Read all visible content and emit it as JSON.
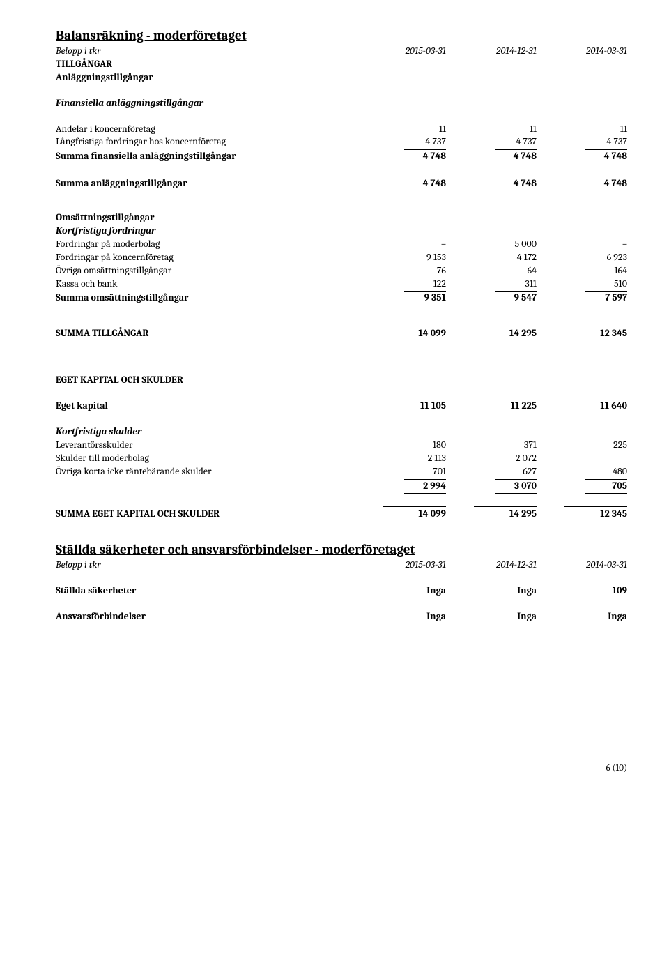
{
  "title1": "Balansräkning - moderföretaget",
  "header": {
    "label": "Belopp i tkr",
    "c1": "2015-03-31",
    "c2": "2014-12-31",
    "c3": "2014-03-31"
  },
  "s_tillgangar": "TILLGÅNGAR",
  "s_anlaggning": "Anläggningstillgångar",
  "s_fin_anl": "Finansiella anläggningstillgångar",
  "r_andelar": {
    "label": "Andelar i koncernföretag",
    "c1": "11",
    "c2": "11",
    "c3": "11"
  },
  "r_langfr": {
    "label": "Långfristiga fordringar hos koncernföretag",
    "c1": "4 737",
    "c2": "4 737",
    "c3": "4 737"
  },
  "r_sum_fin": {
    "label": "Summa finansiella anläggningstillgångar",
    "c1": "4 748",
    "c2": "4 748",
    "c3": "4 748"
  },
  "r_sum_anl": {
    "label": "Summa anläggningstillgångar",
    "c1": "4 748",
    "c2": "4 748",
    "c3": "4 748"
  },
  "s_oms": "Omsättningstillgångar",
  "s_kort_fordr": "Kortfristiga fordringar",
  "r_fordr_moder": {
    "label": "Fordringar på moderbolag",
    "c1": "–",
    "c2": "5 000",
    "c3": "–"
  },
  "r_fordr_konc": {
    "label": "Fordringar på koncernföretag",
    "c1": "9 153",
    "c2": "4 172",
    "c3": "6 923"
  },
  "r_ovriga_oms": {
    "label": "Övriga omsättningstillgångar",
    "c1": "76",
    "c2": "64",
    "c3": "164"
  },
  "r_kassa": {
    "label": "Kassa och bank",
    "c1": "122",
    "c2": "311",
    "c3": "510"
  },
  "r_sum_oms": {
    "label": "Summa omsättningstillgångar",
    "c1": "9 351",
    "c2": "9 547",
    "c3": "7 597"
  },
  "r_sum_till": {
    "label": "SUMMA TILLGÅNGAR",
    "c1": "14 099",
    "c2": "14 295",
    "c3": "12 345"
  },
  "s_eget": "EGET KAPITAL OCH SKULDER",
  "r_eget_kap": {
    "label": "Eget kapital",
    "c1": "11 105",
    "c2": "11 225",
    "c3": "11 640"
  },
  "s_kort_sk": "Kortfristiga skulder",
  "r_lev": {
    "label": "Leverantörsskulder",
    "c1": "180",
    "c2": "371",
    "c3": "225"
  },
  "r_sk_moder": {
    "label": "Skulder till moderbolag",
    "c1": "2 113",
    "c2": "2 072",
    "c3": ""
  },
  "r_ovr_kort": {
    "label": "Övriga korta icke räntebärande skulder",
    "c1": "701",
    "c2": "627",
    "c3": "480"
  },
  "r_sub_sk": {
    "label": "",
    "c1": "2 994",
    "c2": "3 070",
    "c3": "705"
  },
  "r_sum_eget": {
    "label": "SUMMA EGET KAPITAL OCH SKULDER",
    "c1": "14 099",
    "c2": "14 295",
    "c3": "12 345"
  },
  "title2": "Ställda säkerheter och ansvarsförbindelser - moderföretaget",
  "header2": {
    "label": "Belopp i tkr",
    "c1": "2015-03-31",
    "c2": "2014-12-31",
    "c3": "2014-03-31"
  },
  "r_stallda": {
    "label": "Ställda säkerheter",
    "c1": "Inga",
    "c2": "Inga",
    "c3": "109"
  },
  "r_ansvar": {
    "label": "Ansvarsförbindelser",
    "c1": "Inga",
    "c2": "Inga",
    "c3": "Inga"
  },
  "page_num": "6 (10)"
}
